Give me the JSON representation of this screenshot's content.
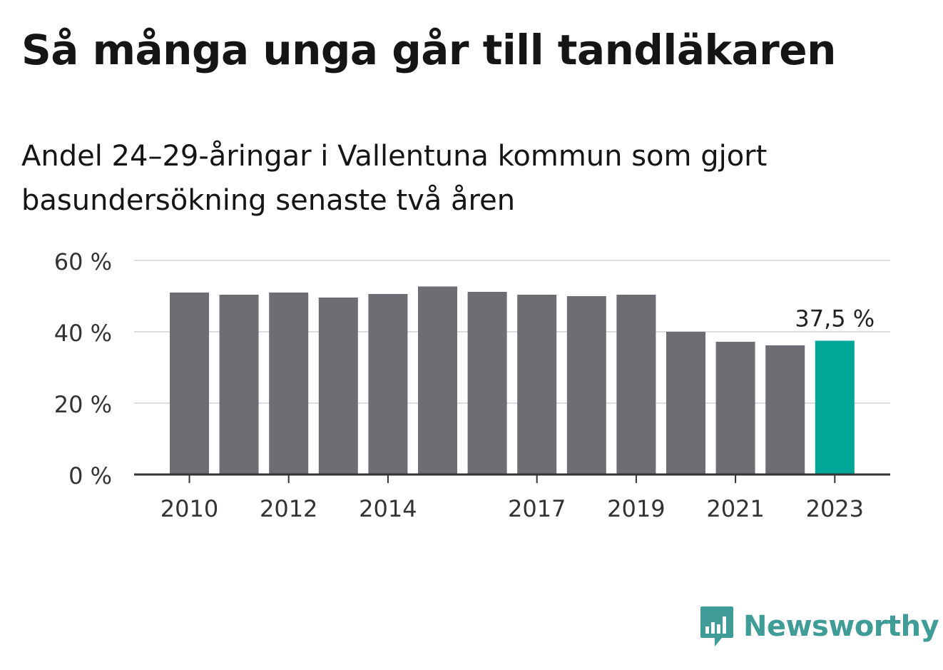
{
  "title": "Så många unga går till tandläkaren",
  "subtitle": "Andel 24–29-åringar i Vallentuna kommun som gjort basundersökning senaste två åren",
  "brand": {
    "name": "Newsworthy",
    "icon": "newsworthy-logo-icon",
    "color": "#3f9c96"
  },
  "colors": {
    "bar": "#6e6d74",
    "highlight": "#00a698",
    "grid": "#dddddd",
    "axis": "#333333",
    "text": "#333333"
  },
  "chart_data": {
    "type": "bar",
    "title": "Så många unga går till tandläkaren",
    "subtitle": "Andel 24–29-åringar i Vallentuna kommun som gjort basundersökning senaste två åren",
    "categories": [
      "2010",
      "2011",
      "2012",
      "2013",
      "2014",
      "2015",
      "2016",
      "2017",
      "2018",
      "2019",
      "2020",
      "2021",
      "2022",
      "2023"
    ],
    "values": [
      51.0,
      50.4,
      51.0,
      49.6,
      50.6,
      52.7,
      51.2,
      50.4,
      50.0,
      50.4,
      40.0,
      37.2,
      36.2,
      37.5
    ],
    "tick_labels": [
      "2010",
      "2012",
      "2014",
      "2017",
      "2019",
      "2021",
      "2023"
    ],
    "y_ticks": [
      0,
      20,
      40,
      60
    ],
    "y_tick_labels": [
      "0 %",
      "20 %",
      "40 %",
      "60 %"
    ],
    "ylim": [
      0,
      60
    ],
    "highlight_index": 13,
    "highlight_label": "37,5 %",
    "xlabel": "",
    "ylabel": "",
    "grid": true
  }
}
